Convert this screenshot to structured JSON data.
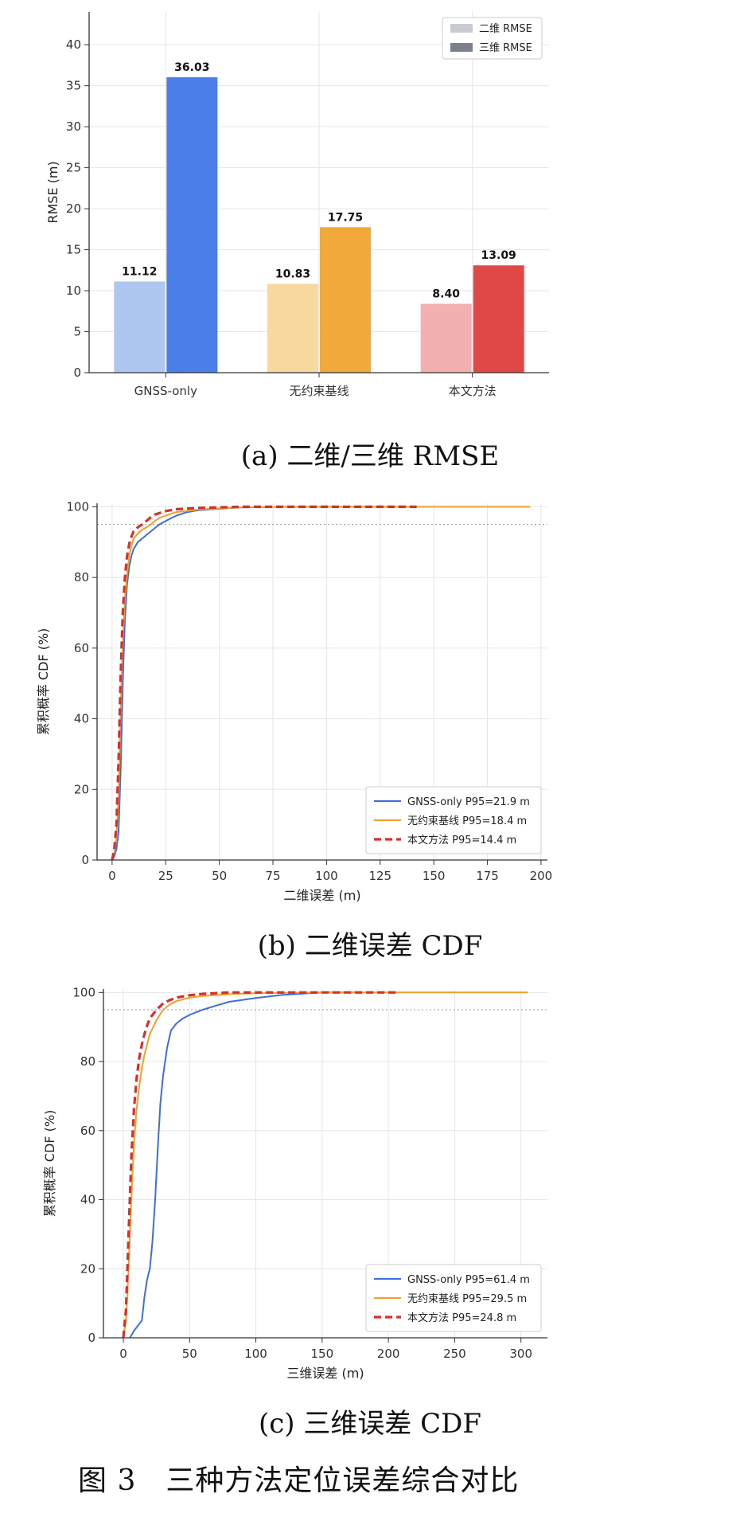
{
  "captions": {
    "a": "(a)  二维/三维 RMSE",
    "b": "(b)  二维误差 CDF",
    "c": "(c)  三维误差 CDF",
    "figure": "图 3　三种方法定位误差综合对比"
  },
  "chart_data": [
    {
      "type": "bar",
      "categories": [
        "GNSS-only",
        "无约束基线",
        "本文方法"
      ],
      "series": [
        {
          "name": "二维 RMSE",
          "values": [
            11.12,
            10.83,
            8.4
          ],
          "colors": [
            "#aec7f0",
            "#f7d9a0",
            "#f2b0b0"
          ],
          "legend_color": "#c8cbd2"
        },
        {
          "name": "三维 RMSE",
          "values": [
            36.03,
            17.75,
            13.09
          ],
          "colors": [
            "#4a7ee8",
            "#f2a93b",
            "#e04848"
          ],
          "legend_color": "#7a808c"
        }
      ],
      "value_labels": {
        "二维 RMSE": [
          "11.12",
          "10.83",
          "8.40"
        ],
        "三维 RMSE": [
          "36.03",
          "17.75",
          "13.09"
        ]
      },
      "ylabel": "RMSE (m)",
      "xlabel": "",
      "ylim": [
        0,
        44
      ],
      "yticks": [
        0,
        5,
        10,
        15,
        20,
        25,
        30,
        35,
        40
      ],
      "grid": true,
      "legend": "top-right"
    },
    {
      "type": "line",
      "xlabel": "二维误差 (m)",
      "ylabel": "累积概率 CDF (%)",
      "xlim": [
        -7,
        203
      ],
      "ylim": [
        0,
        101
      ],
      "xticks": [
        0,
        25,
        50,
        75,
        100,
        125,
        150,
        175,
        200
      ],
      "yticks": [
        0,
        20,
        40,
        60,
        80,
        100
      ],
      "reference_line_y": 95,
      "grid": true,
      "legend": "bottom-right",
      "series": [
        {
          "name": "GNSS-only  P95=21.9 m",
          "color": "#3b6fe0",
          "dash": false,
          "x": [
            0,
            1,
            2,
            3,
            4,
            5,
            6,
            7,
            8,
            9,
            10,
            12,
            14,
            16,
            18,
            20,
            22,
            25,
            30,
            35,
            40,
            50,
            60,
            80,
            100,
            142
          ],
          "y": [
            0,
            1,
            3,
            8,
            25,
            50,
            68,
            78,
            83,
            86,
            88,
            90,
            91,
            92,
            93,
            94,
            95,
            96,
            97.5,
            98.5,
            99,
            99.5,
            99.8,
            100,
            100,
            100
          ]
        },
        {
          "name": "无约束基线  P95=18.4 m",
          "color": "#f0a02a",
          "dash": false,
          "x": [
            0,
            1,
            2,
            3,
            4,
            5,
            6,
            7,
            8,
            9,
            10,
            12,
            14,
            16,
            18,
            20,
            22,
            25,
            30,
            40,
            50,
            60,
            80,
            120,
            195
          ],
          "y": [
            0,
            2,
            6,
            18,
            42,
            62,
            74,
            81,
            86,
            89,
            91,
            92.5,
            93.5,
            94.2,
            95,
            96,
            96.8,
            97.5,
            98.5,
            99.2,
            99.6,
            99.8,
            100,
            100,
            100
          ]
        },
        {
          "name": "本文方法  P95=14.4 m",
          "color": "#d6302b",
          "dash": true,
          "x": [
            0,
            1,
            2,
            3,
            4,
            5,
            6,
            7,
            8,
            9,
            10,
            12,
            14,
            16,
            18,
            20,
            25,
            30,
            40,
            60,
            80,
            100,
            142
          ],
          "y": [
            0,
            3,
            10,
            28,
            52,
            70,
            80,
            86,
            89.5,
            91.5,
            93,
            94.2,
            95,
            96,
            97,
            97.8,
            98.8,
            99.3,
            99.7,
            100,
            100,
            100,
            100
          ]
        }
      ]
    },
    {
      "type": "line",
      "xlabel": "三维误差 (m)",
      "ylabel": "累积概率 CDF (%)",
      "xlim": [
        -15,
        320
      ],
      "ylim": [
        0,
        101
      ],
      "xticks": [
        0,
        50,
        100,
        150,
        200,
        250,
        300
      ],
      "yticks": [
        0,
        20,
        40,
        60,
        80,
        100
      ],
      "reference_line_y": 95,
      "grid": true,
      "legend": "bottom-right",
      "series": [
        {
          "name": "GNSS-only  P95=61.4 m",
          "color": "#3b6fe0",
          "dash": false,
          "x": [
            5,
            8,
            10,
            14,
            16,
            18,
            20,
            22,
            24,
            26,
            28,
            30,
            33,
            36,
            40,
            45,
            50,
            55,
            60,
            70,
            80,
            100,
            120,
            150,
            180
          ],
          "y": [
            0,
            2,
            3,
            5,
            12,
            17,
            20,
            28,
            40,
            55,
            68,
            76,
            84,
            89,
            91,
            92.5,
            93.5,
            94.3,
            95,
            96.2,
            97.3,
            98.4,
            99.3,
            100,
            100
          ]
        },
        {
          "name": "无约束基线  P95=29.5 m",
          "color": "#f0a02a",
          "dash": false,
          "x": [
            0,
            2,
            4,
            6,
            8,
            10,
            12,
            14,
            16,
            18,
            20,
            25,
            30,
            35,
            40,
            50,
            60,
            80,
            100,
            150,
            200,
            305
          ],
          "y": [
            0,
            5,
            20,
            40,
            56,
            66,
            73,
            78,
            82,
            85,
            88,
            92,
            95,
            96.5,
            97.5,
            98.5,
            99,
            99.5,
            99.8,
            100,
            100,
            100
          ]
        },
        {
          "name": "本文方法  P95=24.8 m",
          "color": "#d6302b",
          "dash": true,
          "x": [
            0,
            2,
            4,
            6,
            8,
            10,
            12,
            14,
            16,
            18,
            20,
            25,
            30,
            35,
            40,
            50,
            60,
            80,
            100,
            150,
            208
          ],
          "y": [
            0,
            8,
            30,
            52,
            66,
            75,
            81,
            85,
            88,
            90.5,
            92.5,
            95,
            96.8,
            97.8,
            98.5,
            99.2,
            99.6,
            100,
            100,
            100,
            100
          ]
        }
      ]
    }
  ]
}
